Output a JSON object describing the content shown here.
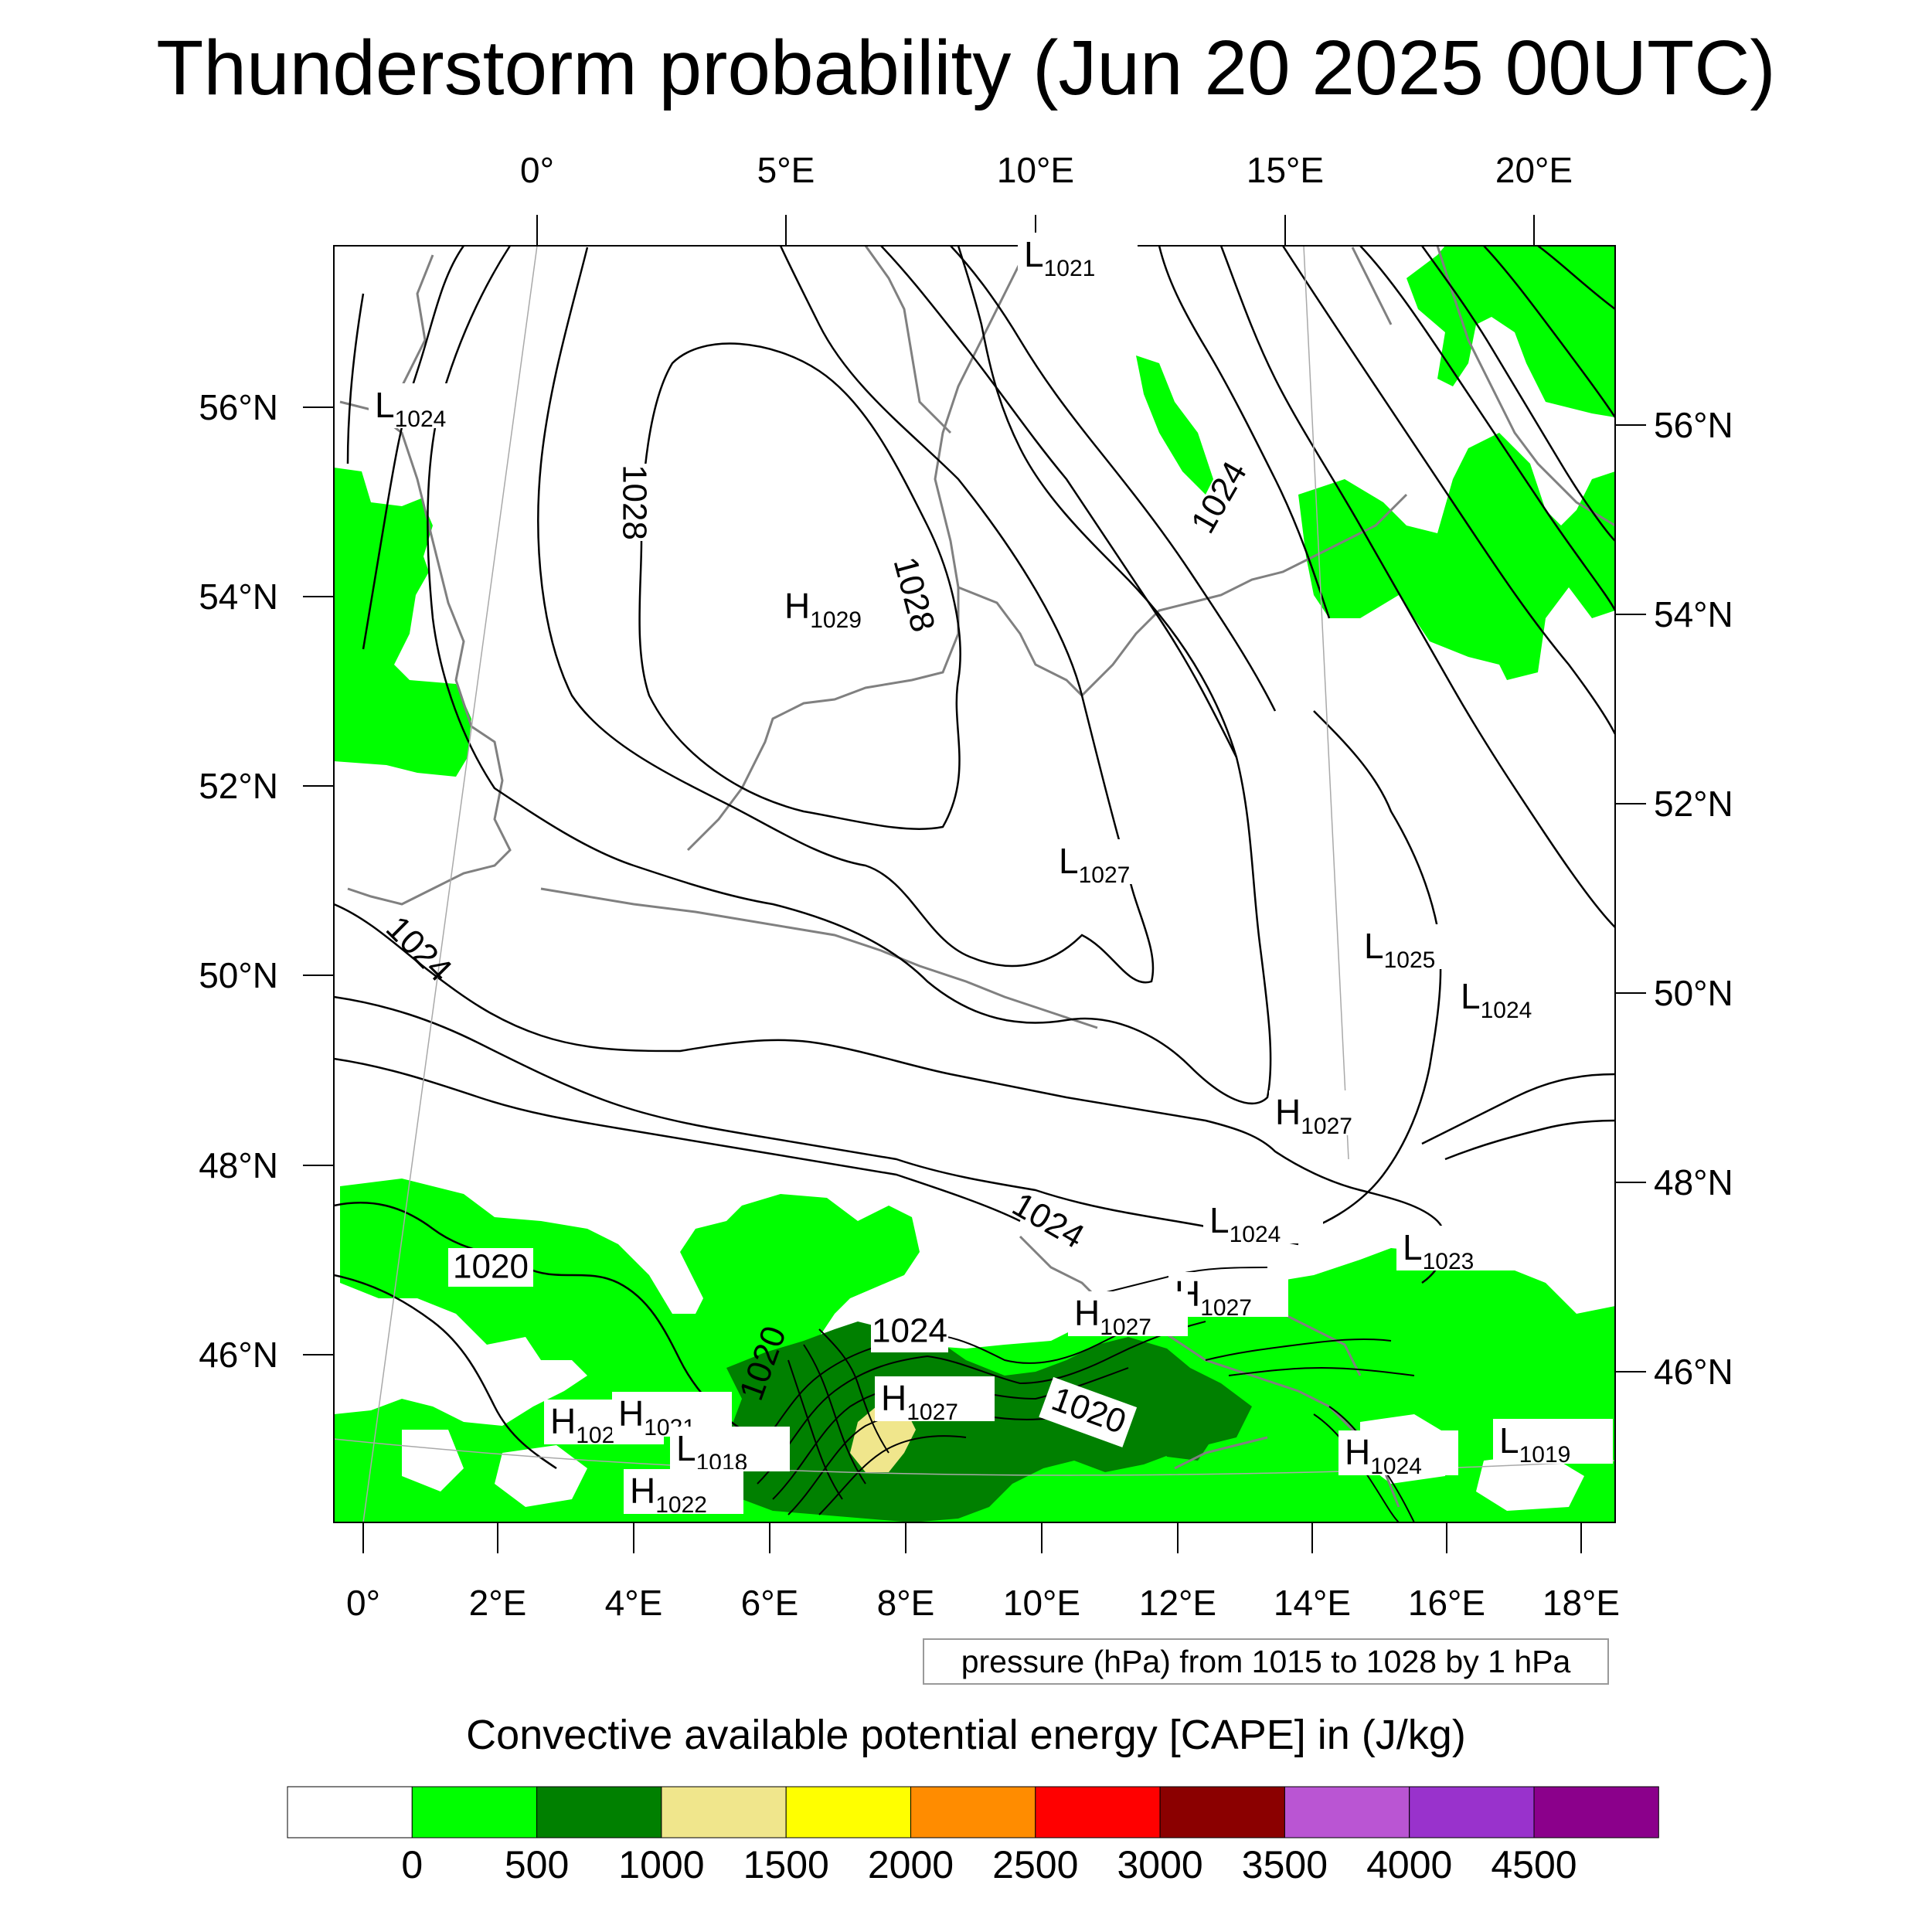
{
  "title": "Thunderstorm probability (Jun 20 2025 00UTC)",
  "top_lon_labels": [
    "0°",
    "5°E",
    "10°E",
    "15°E",
    "20°E"
  ],
  "bottom_lon_labels": [
    "0°",
    "2°E",
    "4°E",
    "6°E",
    "8°E",
    "10°E",
    "12°E",
    "14°E",
    "16°E",
    "18°E"
  ],
  "left_lat_labels": [
    "56°N",
    "54°N",
    "52°N",
    "50°N",
    "48°N",
    "46°N"
  ],
  "right_lat_labels": [
    "56°N",
    "54°N",
    "52°N",
    "50°N",
    "48°N",
    "46°N"
  ],
  "isobar_labels": [
    "1028",
    "1028",
    "1024",
    "1024",
    "1024",
    "1024",
    "1020",
    "1020",
    "1020",
    "1024"
  ],
  "pressure_centers": [
    {
      "type": "L",
      "value": "1021"
    },
    {
      "type": "L",
      "value": "1024"
    },
    {
      "type": "H",
      "value": "1029"
    },
    {
      "type": "L",
      "value": "1027"
    },
    {
      "type": "L",
      "value": "1025"
    },
    {
      "type": "L",
      "value": "1024"
    },
    {
      "type": "H",
      "value": "1027"
    },
    {
      "type": "L",
      "value": "1024"
    },
    {
      "type": "L",
      "value": "1023"
    },
    {
      "type": "H",
      "value": "1027"
    },
    {
      "type": "H",
      "value": "1027"
    },
    {
      "type": "H",
      "value": "1027"
    },
    {
      "type": "H",
      "value": "102"
    },
    {
      "type": "H",
      "value": "1021"
    },
    {
      "type": "L",
      "value": "1018"
    },
    {
      "type": "H",
      "value": "1022"
    },
    {
      "type": "H",
      "value": "1024"
    },
    {
      "type": "L",
      "value": "1019"
    }
  ],
  "contour_note": "pressure (hPa) from 1015 to 1028 by 1 hPa",
  "colorbar": {
    "title": "Convective available potential energy [CAPE] in (J/kg)",
    "ticks": [
      "0",
      "500",
      "1000",
      "1500",
      "2000",
      "2500",
      "3000",
      "3500",
      "4000",
      "4500"
    ],
    "colors": [
      "#ffffff",
      "#00ff00",
      "#008000",
      "#f0e68c",
      "#ffff00",
      "#ff8c00",
      "#ff0000",
      "#8b0000",
      "#ba55d3",
      "#9932cc",
      "#8b008b"
    ]
  }
}
